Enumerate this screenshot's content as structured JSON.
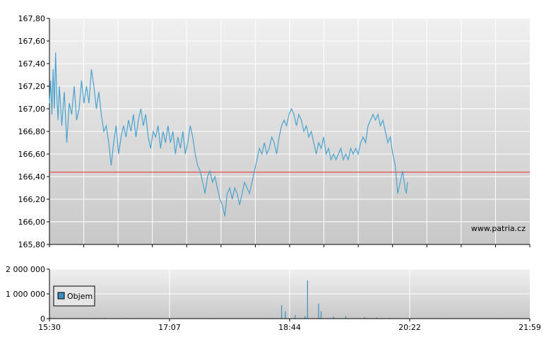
{
  "watermark": "www.patria.cz",
  "colors": {
    "line": "#4aa3cf",
    "reference_line": "#e05050",
    "grid": "#ffffff",
    "bg_top": "#f0f0f0",
    "bg_bottom": "#c8c8c8",
    "volume_bar": "#3a8fc0",
    "axis": "#000000"
  },
  "chart_data": [
    {
      "type": "line",
      "ylim": [
        165.8,
        167.8
      ],
      "y_ticks": [
        "165,80",
        "166,00",
        "166,20",
        "166,40",
        "166,60",
        "166,80",
        "167,00",
        "167,20",
        "167,40",
        "167,60",
        "167,80"
      ],
      "reference_value": 166.44,
      "x_range": [
        "15:30",
        "21:59"
      ],
      "series": [
        {
          "points": [
            [
              "15:30",
              167.05
            ],
            [
              "15:31",
              167.25
            ],
            [
              "15:32",
              166.95
            ],
            [
              "15:33",
              167.35
            ],
            [
              "15:34",
              167.0
            ],
            [
              "15:35",
              167.5
            ],
            [
              "15:36",
              167.1
            ],
            [
              "15:37",
              166.9
            ],
            [
              "15:38",
              167.2
            ],
            [
              "15:40",
              166.85
            ],
            [
              "15:42",
              167.15
            ],
            [
              "15:44",
              166.7
            ],
            [
              "15:46",
              167.05
            ],
            [
              "15:48",
              166.95
            ],
            [
              "15:50",
              167.2
            ],
            [
              "15:52",
              166.9
            ],
            [
              "15:54",
              167.0
            ],
            [
              "15:56",
              167.25
            ],
            [
              "15:58",
              167.05
            ],
            [
              "16:00",
              167.2
            ],
            [
              "16:02",
              167.05
            ],
            [
              "16:04",
              167.35
            ],
            [
              "16:06",
              167.2
            ],
            [
              "16:08",
              167.0
            ],
            [
              "16:10",
              167.15
            ],
            [
              "16:12",
              166.95
            ],
            [
              "16:14",
              166.8
            ],
            [
              "16:16",
              166.85
            ],
            [
              "16:18",
              166.7
            ],
            [
              "16:20",
              166.5
            ],
            [
              "16:22",
              166.7
            ],
            [
              "16:24",
              166.85
            ],
            [
              "16:26",
              166.6
            ],
            [
              "16:28",
              166.75
            ],
            [
              "16:30",
              166.85
            ],
            [
              "16:32",
              166.75
            ],
            [
              "16:34",
              166.9
            ],
            [
              "16:36",
              166.8
            ],
            [
              "16:38",
              166.95
            ],
            [
              "16:40",
              166.75
            ],
            [
              "16:42",
              166.9
            ],
            [
              "16:44",
              167.0
            ],
            [
              "16:46",
              166.85
            ],
            [
              "16:48",
              166.95
            ],
            [
              "16:50",
              166.75
            ],
            [
              "16:52",
              166.65
            ],
            [
              "16:54",
              166.8
            ],
            [
              "16:56",
              166.75
            ],
            [
              "16:58",
              166.85
            ],
            [
              "17:00",
              166.65
            ],
            [
              "17:02",
              166.8
            ],
            [
              "17:04",
              166.7
            ],
            [
              "17:06",
              166.85
            ],
            [
              "17:08",
              166.7
            ],
            [
              "17:10",
              166.8
            ],
            [
              "17:12",
              166.6
            ],
            [
              "17:14",
              166.75
            ],
            [
              "17:16",
              166.65
            ],
            [
              "17:18",
              166.8
            ],
            [
              "17:20",
              166.6
            ],
            [
              "17:22",
              166.7
            ],
            [
              "17:24",
              166.85
            ],
            [
              "17:26",
              166.75
            ],
            [
              "17:28",
              166.6
            ],
            [
              "17:30",
              166.5
            ],
            [
              "17:32",
              166.45
            ],
            [
              "17:34",
              166.35
            ],
            [
              "17:36",
              166.25
            ],
            [
              "17:38",
              166.4
            ],
            [
              "17:40",
              166.45
            ],
            [
              "17:42",
              166.35
            ],
            [
              "17:44",
              166.4
            ],
            [
              "17:46",
              166.3
            ],
            [
              "17:48",
              166.2
            ],
            [
              "17:50",
              166.15
            ],
            [
              "17:52",
              166.05
            ],
            [
              "17:54",
              166.25
            ],
            [
              "17:56",
              166.3
            ],
            [
              "17:58",
              166.2
            ],
            [
              "18:00",
              166.3
            ],
            [
              "18:02",
              166.25
            ],
            [
              "18:04",
              166.15
            ],
            [
              "18:06",
              166.25
            ],
            [
              "18:08",
              166.35
            ],
            [
              "18:10",
              166.3
            ],
            [
              "18:12",
              166.25
            ],
            [
              "18:14",
              166.35
            ],
            [
              "18:16",
              166.45
            ],
            [
              "18:18",
              166.55
            ],
            [
              "18:20",
              166.65
            ],
            [
              "18:22",
              166.6
            ],
            [
              "18:24",
              166.7
            ],
            [
              "18:26",
              166.6
            ],
            [
              "18:28",
              166.65
            ],
            [
              "18:30",
              166.75
            ],
            [
              "18:32",
              166.7
            ],
            [
              "18:34",
              166.6
            ],
            [
              "18:36",
              166.75
            ],
            [
              "18:38",
              166.85
            ],
            [
              "18:40",
              166.9
            ],
            [
              "18:42",
              166.85
            ],
            [
              "18:44",
              166.95
            ],
            [
              "18:46",
              167.0
            ],
            [
              "18:48",
              166.95
            ],
            [
              "18:50",
              166.85
            ],
            [
              "18:52",
              166.95
            ],
            [
              "18:54",
              166.9
            ],
            [
              "18:56",
              166.8
            ],
            [
              "18:58",
              166.85
            ],
            [
              "19:00",
              166.75
            ],
            [
              "19:02",
              166.8
            ],
            [
              "19:04",
              166.7
            ],
            [
              "19:06",
              166.6
            ],
            [
              "19:08",
              166.7
            ],
            [
              "19:10",
              166.65
            ],
            [
              "19:12",
              166.75
            ],
            [
              "19:14",
              166.6
            ],
            [
              "19:16",
              166.65
            ],
            [
              "19:18",
              166.55
            ],
            [
              "19:20",
              166.6
            ],
            [
              "19:22",
              166.55
            ],
            [
              "19:24",
              166.6
            ],
            [
              "19:26",
              166.65
            ],
            [
              "19:28",
              166.55
            ],
            [
              "19:30",
              166.6
            ],
            [
              "19:32",
              166.55
            ],
            [
              "19:34",
              166.65
            ],
            [
              "19:36",
              166.6
            ],
            [
              "19:38",
              166.65
            ],
            [
              "19:40",
              166.6
            ],
            [
              "19:42",
              166.7
            ],
            [
              "19:44",
              166.75
            ],
            [
              "19:46",
              166.7
            ],
            [
              "19:48",
              166.85
            ],
            [
              "19:50",
              166.9
            ],
            [
              "19:52",
              166.95
            ],
            [
              "19:54",
              166.9
            ],
            [
              "19:56",
              166.95
            ],
            [
              "19:58",
              166.85
            ],
            [
              "20:00",
              166.9
            ],
            [
              "20:02",
              166.8
            ],
            [
              "20:04",
              166.7
            ],
            [
              "20:06",
              166.75
            ],
            [
              "20:08",
              166.6
            ],
            [
              "20:10",
              166.5
            ],
            [
              "20:12",
              166.25
            ],
            [
              "20:14",
              166.35
            ],
            [
              "20:16",
              166.45
            ],
            [
              "20:18",
              166.3
            ],
            [
              "20:19",
              166.25
            ],
            [
              "20:20",
              166.35
            ]
          ]
        }
      ]
    },
    {
      "type": "bar",
      "ylim": [
        0,
        2000000
      ],
      "y_ticks": [
        "0",
        "1 000 000",
        "2 000 000"
      ],
      "x_ticks": [
        "15:30",
        "17:07",
        "18:44",
        "20:22",
        "21:59"
      ],
      "legend": "Objem",
      "bars": [
        [
          "15:31",
          40000
        ],
        [
          "15:34",
          30000
        ],
        [
          "15:55",
          15000
        ],
        [
          "16:07",
          20000
        ],
        [
          "16:15",
          30000
        ],
        [
          "16:25",
          20000
        ],
        [
          "16:32",
          30000
        ],
        [
          "16:45",
          15000
        ],
        [
          "17:00",
          20000
        ],
        [
          "17:20",
          15000
        ],
        [
          "17:40",
          20000
        ],
        [
          "18:05",
          15000
        ],
        [
          "18:30",
          20000
        ],
        [
          "18:38",
          550000
        ],
        [
          "18:41",
          300000
        ],
        [
          "18:49",
          150000
        ],
        [
          "18:57",
          100000
        ],
        [
          "18:59",
          1550000
        ],
        [
          "19:08",
          600000
        ],
        [
          "19:10",
          300000
        ],
        [
          "19:20",
          80000
        ],
        [
          "19:30",
          100000
        ],
        [
          "19:45",
          60000
        ],
        [
          "19:55",
          40000
        ],
        [
          "20:05",
          30000
        ],
        [
          "20:20",
          20000
        ],
        [
          "20:35",
          15000
        ],
        [
          "20:50",
          20000
        ],
        [
          "21:05",
          15000
        ],
        [
          "21:20",
          15000
        ],
        [
          "21:35",
          20000
        ],
        [
          "21:50",
          15000
        ]
      ]
    }
  ]
}
